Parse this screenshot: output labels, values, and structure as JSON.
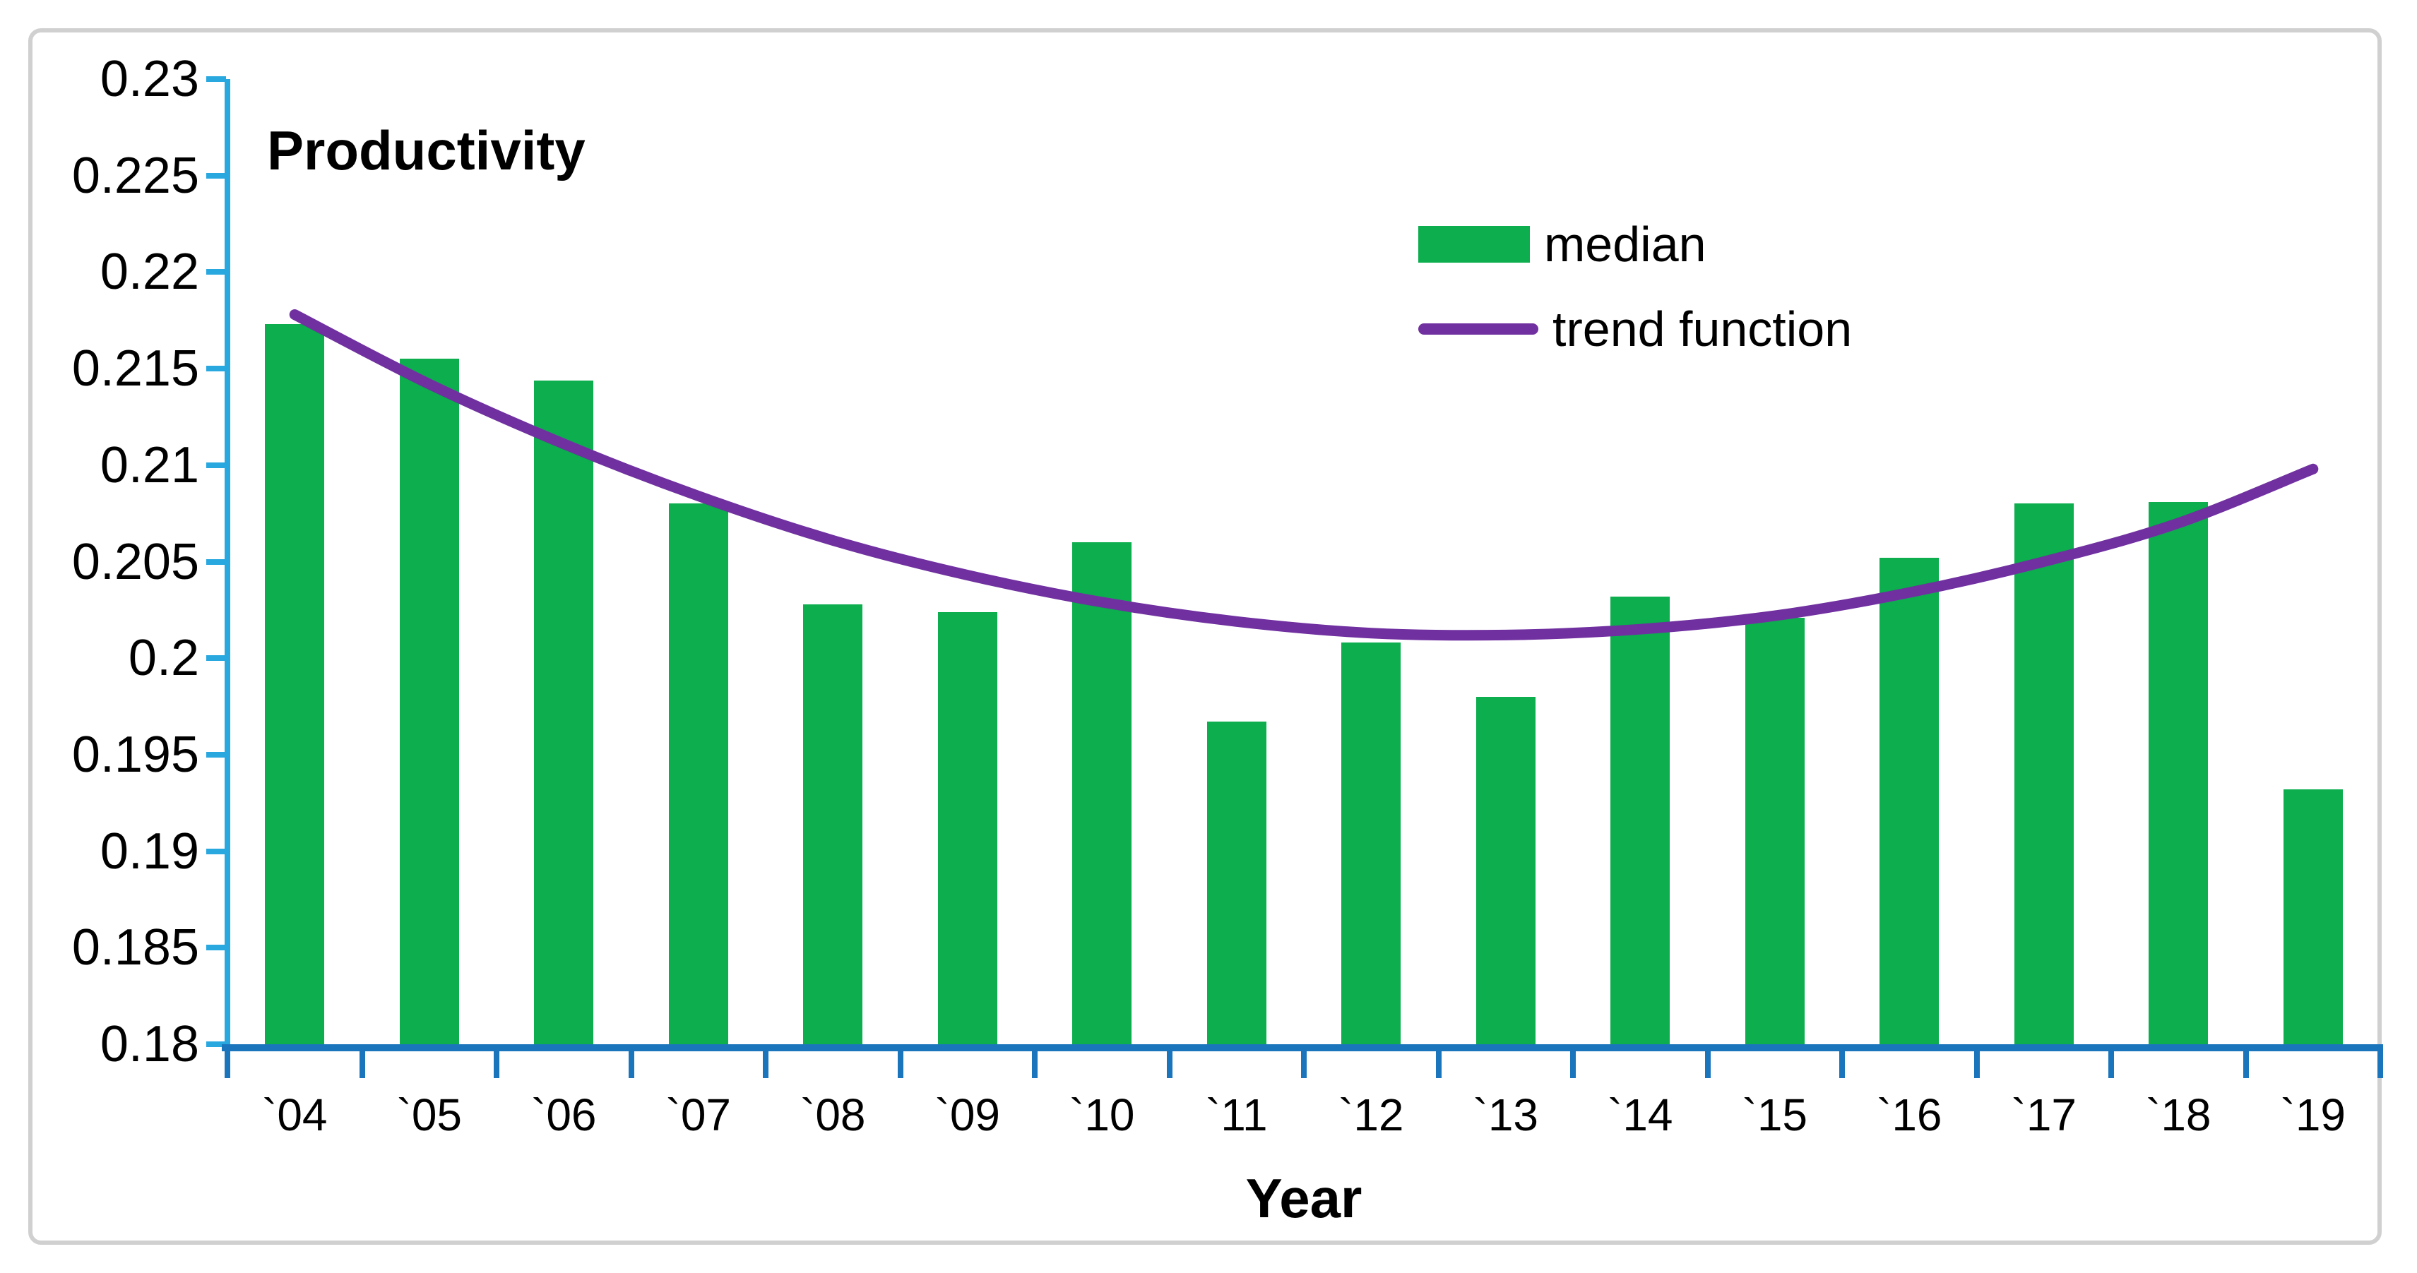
{
  "chart_data": {
    "type": "bar",
    "title": "",
    "xlabel": "Year",
    "ylabel": "Productivity",
    "categories": [
      "`04",
      "`05",
      "`06",
      "`07",
      "`08",
      "`09",
      "`10",
      "`11",
      "`12",
      "`13",
      "`14",
      "`15",
      "`16",
      "`17",
      "`18",
      "`19"
    ],
    "series": [
      {
        "name": "median",
        "type": "bar",
        "color": "#0CAE4E",
        "values": [
          0.2173,
          0.2155,
          0.2144,
          0.208,
          0.2028,
          0.2024,
          0.206,
          0.1967,
          0.2008,
          0.198,
          0.2032,
          0.2021,
          0.2052,
          0.208,
          0.2081,
          0.1932
        ]
      },
      {
        "name": "trend function",
        "type": "line",
        "color": "#7030A0",
        "values": [
          0.2178,
          0.2142,
          0.2111,
          0.2084,
          0.2061,
          0.2043,
          0.2029,
          0.2019,
          0.2013,
          0.2012,
          0.2015,
          0.2022,
          0.2034,
          0.205,
          0.207,
          0.2098
        ]
      }
    ],
    "ylim": [
      0.18,
      0.23
    ],
    "ytick_step": 0.005,
    "ytick_labels_top_to_bottom": [
      "0.23",
      "0.225",
      "0.22",
      "0.215",
      "0.21",
      "0.205",
      "0.2",
      "0.195",
      "0.19",
      "0.185",
      "0.18"
    ],
    "grid": false,
    "legend_position": "inside-top-right"
  },
  "axis_titles": {
    "y": "Productivity",
    "x": "Year"
  },
  "legend": {
    "items": [
      {
        "label": "median",
        "swatch": "rect",
        "color": "#0CAE4E"
      },
      {
        "label": "trend function",
        "swatch": "line",
        "color": "#7030A0"
      }
    ]
  },
  "colors": {
    "bar_green": "#0CAE4E",
    "trend_purple": "#7030A0",
    "y_axis_blue": "#29A8E0",
    "x_axis_blue": "#1B75BC",
    "origin_tick_dark_blue": "#1D4F9C",
    "frame_border_gray": "#D0D0D0",
    "text_black": "#000000"
  }
}
